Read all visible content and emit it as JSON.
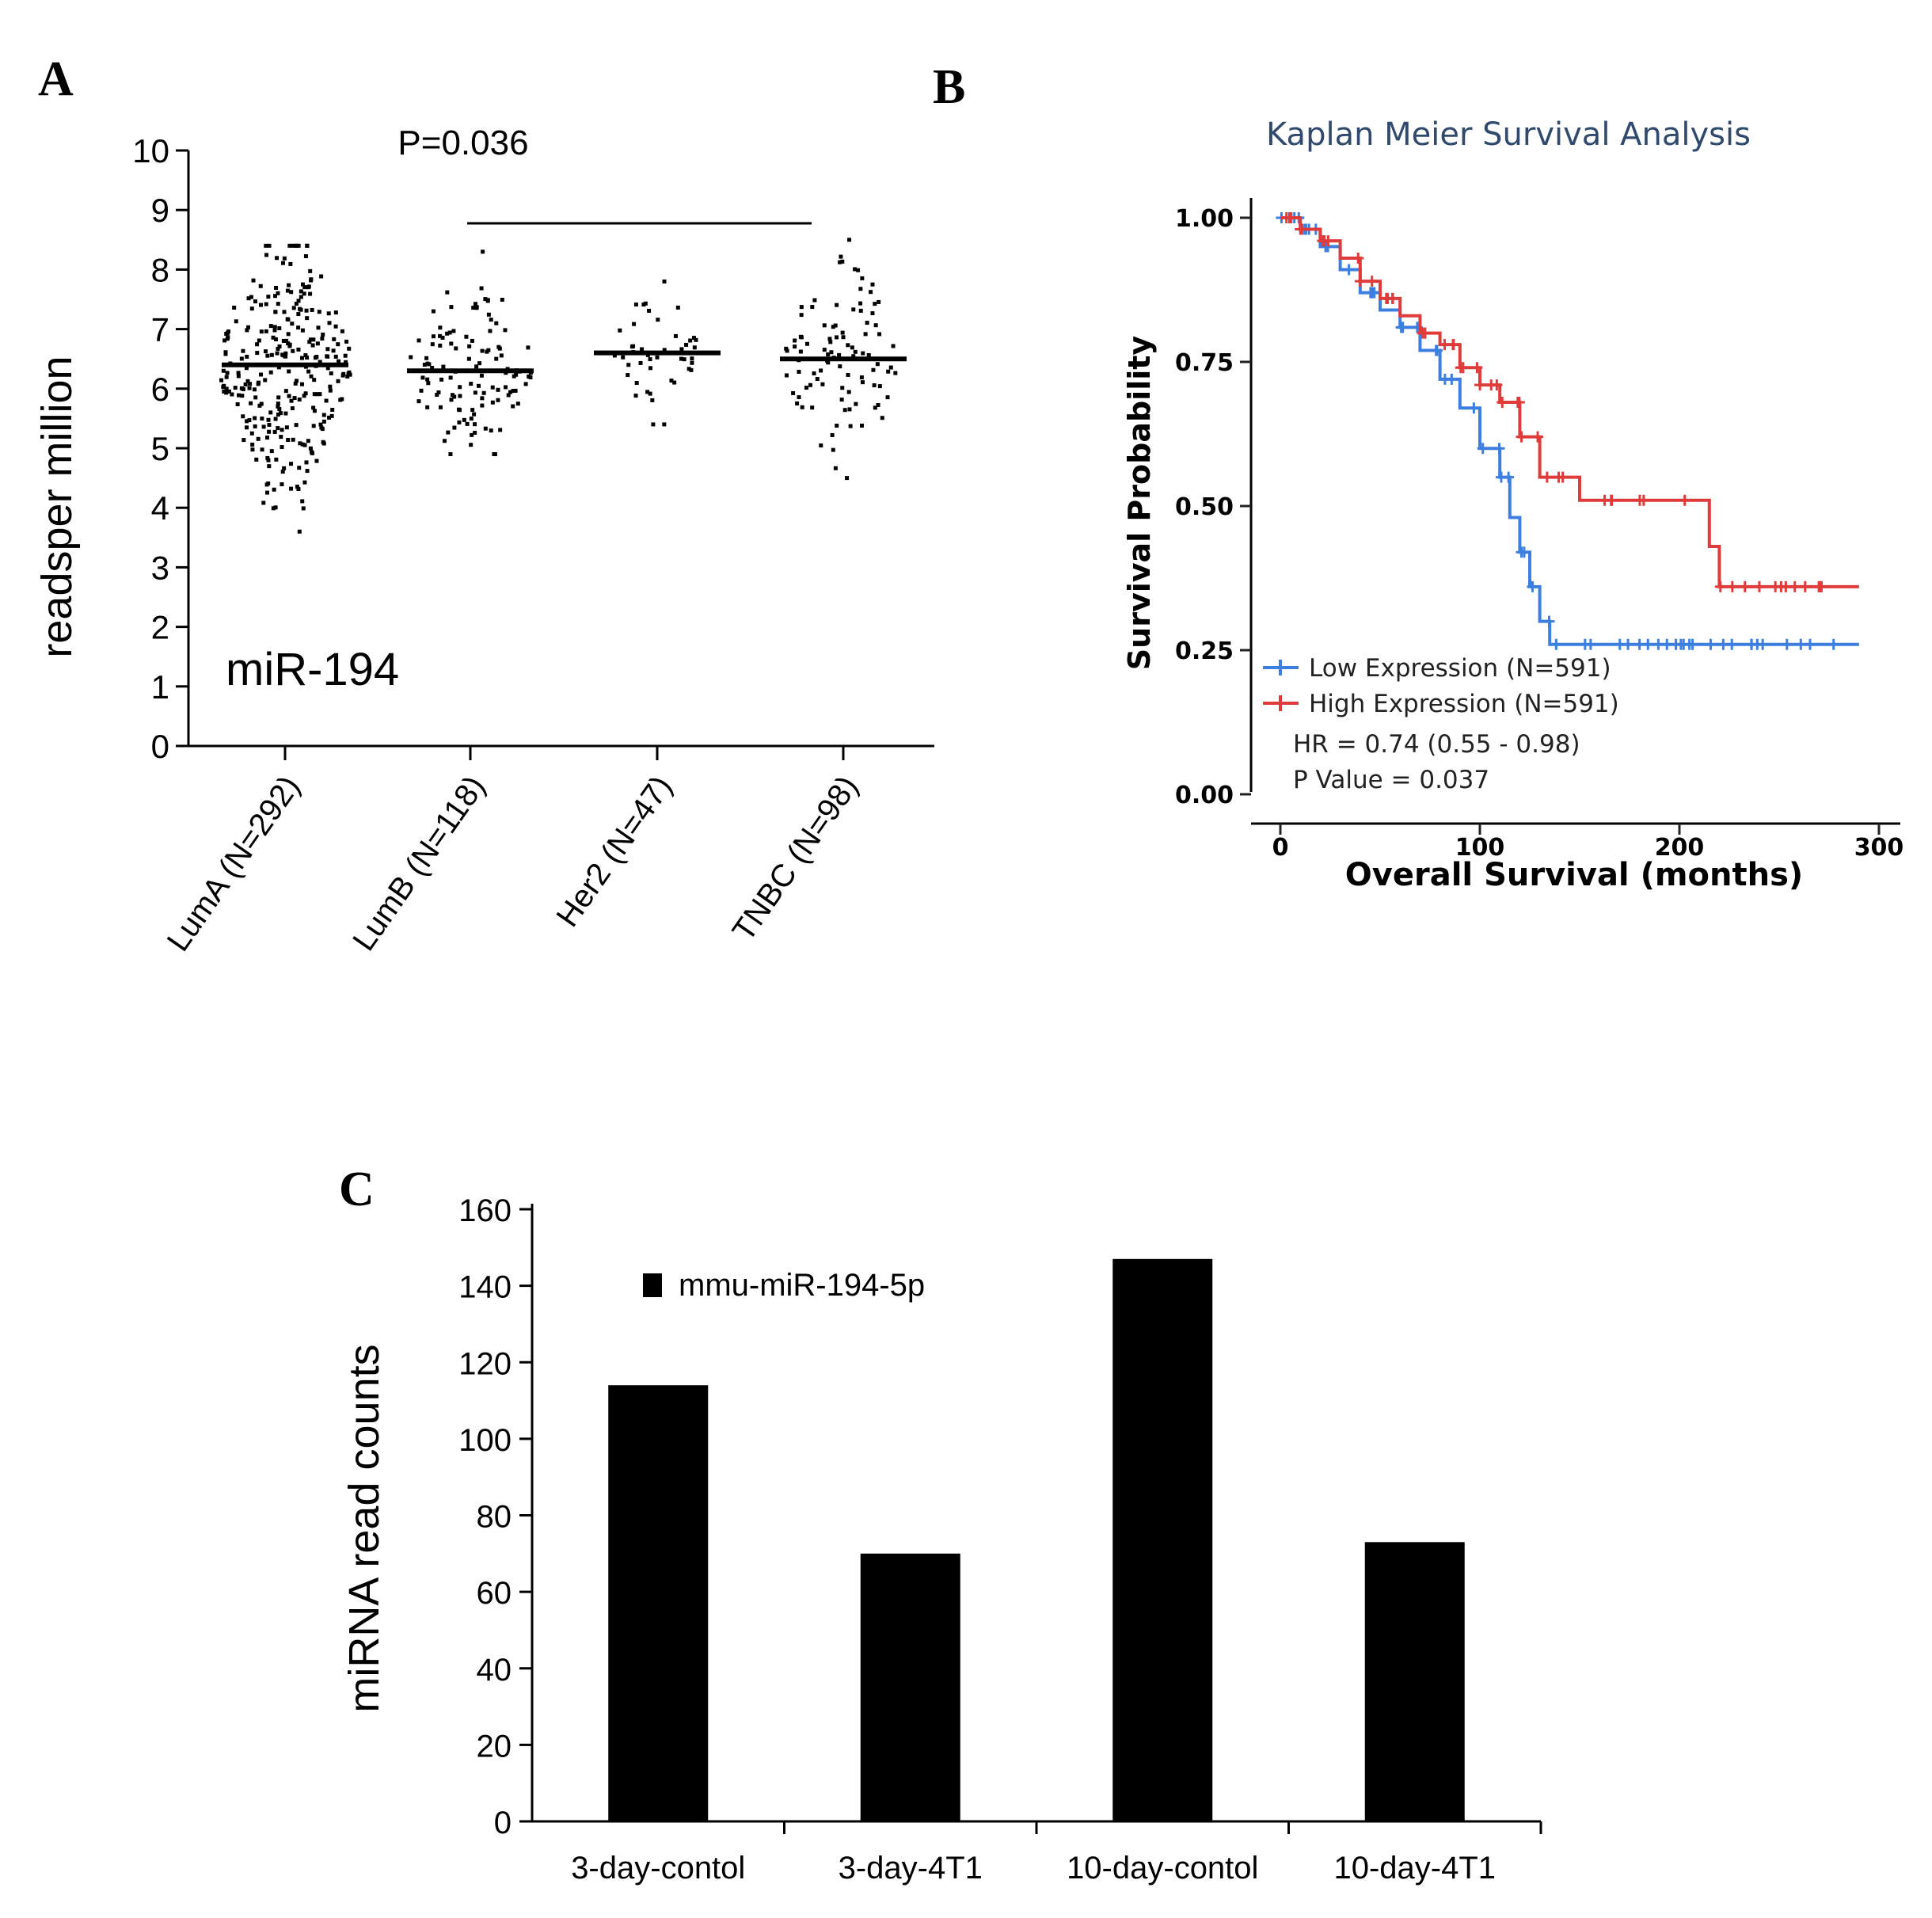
{
  "panels": {
    "a": "A",
    "b": "B",
    "c": "C"
  },
  "chart_data": [
    {
      "type": "scatter",
      "panel": "A",
      "ylabel": "readsper million",
      "ylim": [
        0,
        10
      ],
      "yticks": [
        "0",
        "1",
        "2",
        "3",
        "4",
        "5",
        "6",
        "7",
        "8",
        "9",
        "10"
      ],
      "categories": [
        "LumA (N=292)",
        "LumB (N=118)",
        "Her2 (N=47)",
        "TNBC (N=98)"
      ],
      "groups": [
        {
          "n": 292,
          "mean": 6.4,
          "min": 3.6,
          "max": 8.4
        },
        {
          "n": 118,
          "mean": 6.3,
          "min": 4.9,
          "max": 8.3
        },
        {
          "n": 47,
          "mean": 6.6,
          "min": 5.4,
          "max": 7.8
        },
        {
          "n": 98,
          "mean": 6.5,
          "min": 4.5,
          "max": 8.5
        }
      ],
      "annotation": "miR-194",
      "significance": {
        "label": "P=0.036",
        "from": "LumB (N=118)",
        "to": "TNBC (N=98)",
        "y": 8.8
      }
    },
    {
      "type": "line",
      "panel": "B",
      "title": "Kaplan Meier Survival Analysis",
      "xlabel": "Overall Survival (months)",
      "ylabel": "Survival Probability",
      "xlim": [
        0,
        300
      ],
      "ylim": [
        0,
        1
      ],
      "xticks": [
        "0",
        "100",
        "200",
        "300"
      ],
      "yticks": [
        "0.00",
        "0.25",
        "0.50",
        "0.75",
        "1.00"
      ],
      "legend_position": "bottom-left",
      "series": [
        {
          "name": "Low Expression (N=591)",
          "color": "#3d7fe0",
          "x": [
            0,
            10,
            20,
            30,
            40,
            50,
            60,
            70,
            80,
            90,
            100,
            110,
            115,
            120,
            125,
            130,
            135,
            140,
            150,
            200,
            290
          ],
          "y": [
            1.0,
            0.98,
            0.95,
            0.91,
            0.87,
            0.84,
            0.81,
            0.77,
            0.72,
            0.67,
            0.6,
            0.55,
            0.48,
            0.42,
            0.36,
            0.3,
            0.26,
            0.26,
            0.26,
            0.26,
            0.26
          ]
        },
        {
          "name": "High Expression (N=591)",
          "color": "#e03b3b",
          "x": [
            0,
            10,
            20,
            30,
            40,
            50,
            60,
            70,
            80,
            90,
            100,
            110,
            120,
            130,
            140,
            150,
            200,
            215,
            220,
            290
          ],
          "y": [
            1.0,
            0.98,
            0.96,
            0.93,
            0.89,
            0.86,
            0.83,
            0.8,
            0.78,
            0.74,
            0.71,
            0.68,
            0.62,
            0.55,
            0.55,
            0.51,
            0.51,
            0.43,
            0.36,
            0.36
          ]
        }
      ],
      "hr_text": "HR = 0.74 (0.55 - 0.98)",
      "p_text": "P Value = 0.037"
    },
    {
      "type": "bar",
      "panel": "C",
      "ylabel": "miRNA read counts",
      "ylim": [
        0,
        160
      ],
      "yticks": [
        "0",
        "20",
        "40",
        "60",
        "80",
        "100",
        "120",
        "140",
        "160"
      ],
      "categories": [
        "3-day-contol",
        "3-day-4T1",
        "10-day-contol",
        "10-day-4T1"
      ],
      "series": [
        {
          "name": "mmu-miR-194-5p",
          "values": [
            114,
            70,
            147,
            73
          ],
          "color": "#000000"
        }
      ]
    }
  ]
}
